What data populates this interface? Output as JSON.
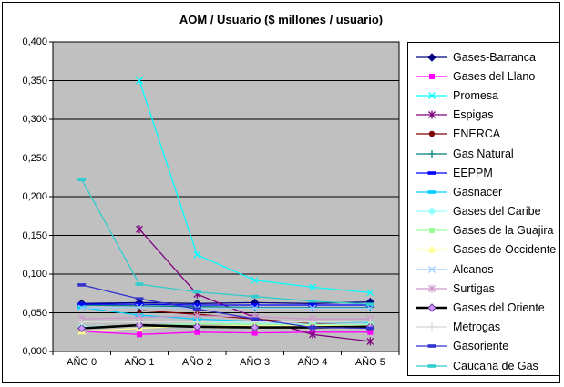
{
  "chart_data": {
    "type": "line",
    "title": "AOM / Usuario  ($ millones / usuario)",
    "xlabel": "",
    "ylabel": "",
    "ylim": [
      0,
      0.4
    ],
    "y_tick_step": 0.05,
    "y_tick_labels": [
      "0,000",
      "0,050",
      "0,100",
      "0,150",
      "0,200",
      "0,250",
      "0,300",
      "0,350",
      "0,400"
    ],
    "categories": [
      "AÑO 0",
      "AÑO 1",
      "AÑO 2",
      "AÑO 3",
      "AÑO 4",
      "AÑO 5"
    ],
    "grid": "horizontal",
    "plot_bg": "#C0C0C0",
    "legend_position": "right",
    "series": [
      {
        "name": "Gases-Barranca",
        "color": "#000080",
        "marker": "diamond",
        "values": [
          0.062,
          0.063,
          0.062,
          0.063,
          0.062,
          0.064
        ]
      },
      {
        "name": "Gases del Llano",
        "color": "#FF00FF",
        "marker": "square",
        "values": [
          0.026,
          0.022,
          0.025,
          0.024,
          0.025,
          0.025
        ]
      },
      {
        "name": "Promesa",
        "color": "#00FFFF",
        "marker": "x",
        "values": [
          null,
          0.35,
          0.125,
          0.092,
          0.083,
          0.076
        ]
      },
      {
        "name": "Espigas",
        "color": "#800080",
        "marker": "asterisk",
        "values": [
          null,
          0.158,
          0.074,
          0.044,
          0.022,
          0.013
        ]
      },
      {
        "name": "ENERCA",
        "color": "#800000",
        "marker": "circle",
        "values": [
          null,
          0.053,
          0.048,
          0.042,
          0.036,
          0.034
        ]
      },
      {
        "name": "Gas Natural",
        "color": "#008080",
        "marker": "plus",
        "values": [
          0.06,
          0.059,
          0.058,
          0.057,
          0.057,
          0.057
        ]
      },
      {
        "name": "EEPPM",
        "color": "#0000FF",
        "marker": "dash",
        "values": [
          0.061,
          0.061,
          0.06,
          0.06,
          0.06,
          0.06
        ]
      },
      {
        "name": "Gasnacer",
        "color": "#00CCFF",
        "marker": "dash",
        "values": [
          0.057,
          0.047,
          0.042,
          0.039,
          0.038,
          0.038
        ]
      },
      {
        "name": "Gases del Caribe",
        "color": "#99FFFF",
        "marker": "diamond",
        "values": [
          0.032,
          0.034,
          0.036,
          0.037,
          0.035,
          0.035
        ]
      },
      {
        "name": "Gases de la Guajira",
        "color": "#99FF99",
        "marker": "square",
        "values": [
          0.03,
          0.033,
          0.036,
          0.035,
          0.034,
          0.034
        ]
      },
      {
        "name": "Gases de Occidente",
        "color": "#FFFF99",
        "marker": "triangle",
        "values": [
          0.026,
          0.03,
          0.033,
          0.033,
          0.033,
          0.033
        ]
      },
      {
        "name": "Alcanos",
        "color": "#99CCFF",
        "marker": "x",
        "values": [
          0.056,
          0.057,
          0.056,
          0.056,
          0.056,
          0.056
        ]
      },
      {
        "name": "Surtigas",
        "color": "#CC99CC",
        "marker": "asterisk",
        "values": [
          0.042,
          0.044,
          0.046,
          0.045,
          0.042,
          0.042
        ]
      },
      {
        "name": "Gases del Oriente",
        "color": "#000000",
        "line_width": 2.6,
        "marker": "diamond",
        "marker_fill": "#CC99FF",
        "marker_stroke": "#663399",
        "values": [
          0.03,
          0.034,
          0.032,
          0.031,
          0.031,
          0.032
        ]
      },
      {
        "name": "Metrogas",
        "color": "#D8D8D8",
        "marker": "plus",
        "values": [
          0.038,
          0.038,
          0.038,
          0.038,
          0.038,
          0.039
        ]
      },
      {
        "name": "Gasoriente",
        "color": "#3333CC",
        "marker": "dash",
        "values": [
          0.086,
          0.068,
          0.055,
          0.042,
          0.031,
          0.03
        ]
      },
      {
        "name": "Caucana de Gas",
        "color": "#33CCCC",
        "marker": "dash",
        "values": [
          0.222,
          0.087,
          0.077,
          0.071,
          0.065,
          0.061
        ]
      }
    ]
  }
}
